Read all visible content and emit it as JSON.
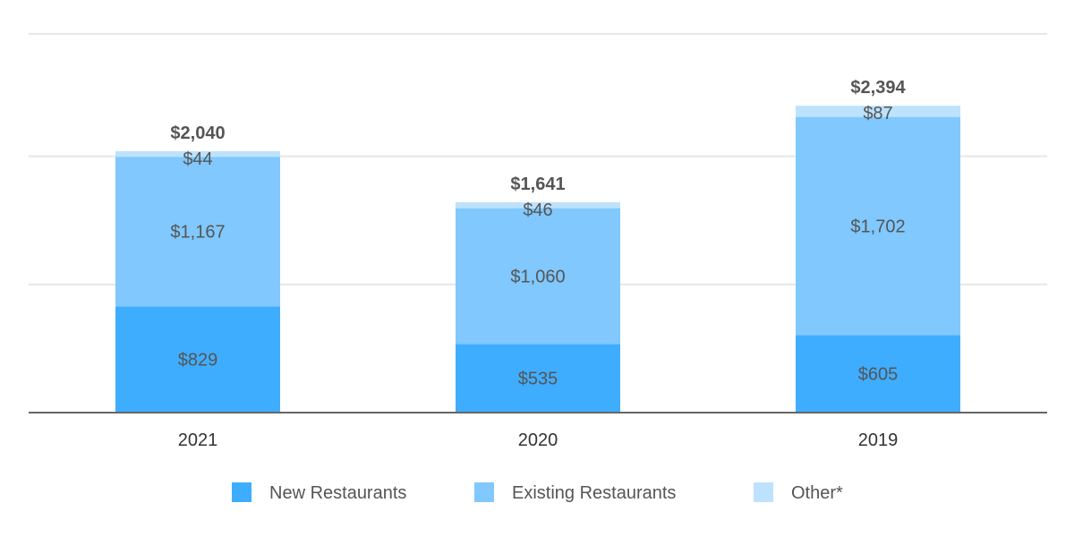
{
  "chart_data": {
    "type": "bar",
    "stacked": true,
    "categories": [
      "2021",
      "2020",
      "2019"
    ],
    "series": [
      {
        "name": "New Restaurants",
        "values": [
          829,
          535,
          605
        ],
        "labels": [
          "$829",
          "$535",
          "$605"
        ],
        "color": "#3fadfe"
      },
      {
        "name": "Existing Restaurants",
        "values": [
          1167,
          1060,
          1702
        ],
        "labels": [
          "$1,167",
          "$1,060",
          "$1,702"
        ],
        "color": "#80c8fd"
      },
      {
        "name": "Other*",
        "values": [
          44,
          46,
          87
        ],
        "labels": [
          "$44",
          "$46",
          "$87"
        ],
        "color": "#bde2fd"
      }
    ],
    "totals": [
      2040,
      1641,
      2394
    ],
    "total_labels": [
      "$2,040",
      "$1,641",
      "$2,394"
    ],
    "ylim": [
      0,
      2800
    ],
    "grid": true,
    "legend_position": "bottom"
  }
}
